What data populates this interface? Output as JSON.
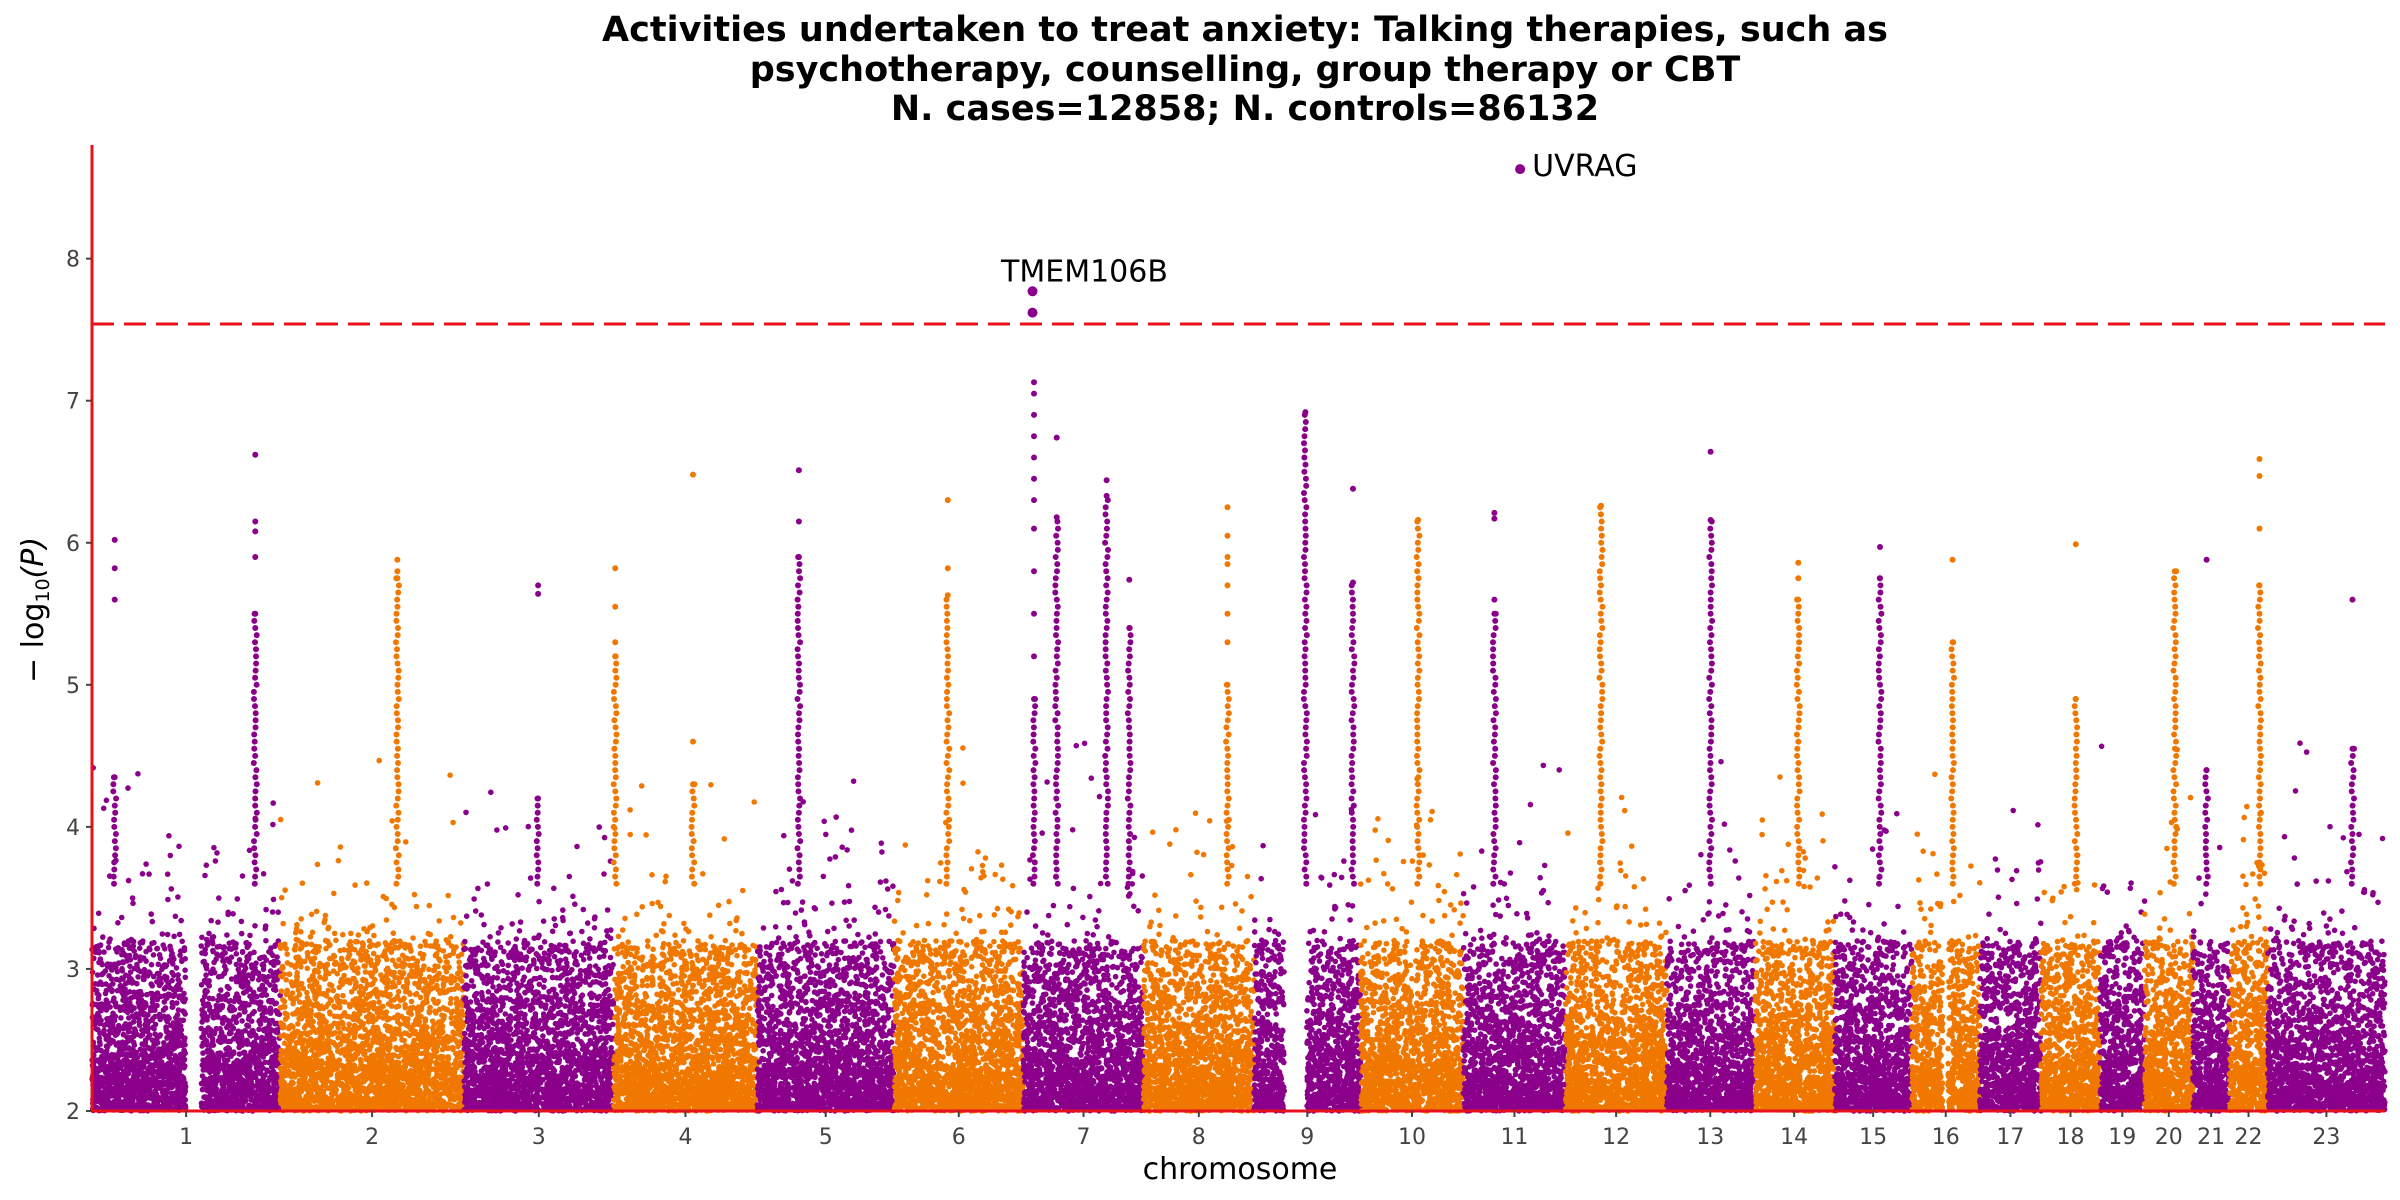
{
  "chart_data": {
    "type": "scatter",
    "title_lines": [
      "Activities undertaken to treat anxiety: Talking therapies, such as",
      "psychotherapy, counselling, group therapy or CBT",
      "N. cases=12858; N. controls=86132"
    ],
    "xlabel": "chromosome",
    "ylabel_prefix": "− log",
    "ylabel_sub": "10",
    "ylabel_suffix": "(P)",
    "ylim": [
      2,
      8.8
    ],
    "yticks": [
      2,
      3,
      4,
      5,
      6,
      7,
      8
    ],
    "threshold": 7.54,
    "colors": {
      "odd": "#8b008b",
      "even": "#f07800",
      "threshold": "#e8101a",
      "axis": "#e8101a",
      "tick": "#444444"
    },
    "chromosomes": [
      {
        "label": "1",
        "start": 0,
        "end": 249,
        "gap_start": 124,
        "gap_end": 144
      },
      {
        "label": "2",
        "start": 249,
        "end": 492
      },
      {
        "label": "3",
        "start": 492,
        "end": 690
      },
      {
        "label": "4",
        "start": 690,
        "end": 880
      },
      {
        "label": "5",
        "start": 880,
        "end": 1061
      },
      {
        "label": "6",
        "start": 1061,
        "end": 1232
      },
      {
        "label": "7",
        "start": 1232,
        "end": 1391
      },
      {
        "label": "8",
        "start": 1391,
        "end": 1537
      },
      {
        "label": "9",
        "start": 1537,
        "end": 1678,
        "gap_start": 1577,
        "gap_end": 1607
      },
      {
        "label": "10",
        "start": 1678,
        "end": 1814
      },
      {
        "label": "11",
        "start": 1814,
        "end": 1949
      },
      {
        "label": "12",
        "start": 1949,
        "end": 2083
      },
      {
        "label": "13",
        "start": 2083,
        "end": 2198,
        "gap_start": 2095,
        "gap_end": 2095
      },
      {
        "label": "14",
        "start": 2198,
        "end": 2305,
        "gap_start": 2198,
        "gap_end": 2200
      },
      {
        "label": "15",
        "start": 2305,
        "end": 2407
      },
      {
        "label": "16",
        "start": 2407,
        "end": 2497,
        "gap_start": 2448,
        "gap_end": 2455
      },
      {
        "label": "17",
        "start": 2497,
        "end": 2578
      },
      {
        "label": "18",
        "start": 2578,
        "end": 2656
      },
      {
        "label": "19",
        "start": 2656,
        "end": 2715
      },
      {
        "label": "20",
        "start": 2715,
        "end": 2779
      },
      {
        "label": "21",
        "start": 2779,
        "end": 2827
      },
      {
        "label": "22",
        "start": 2827,
        "end": 2878
      },
      {
        "label": "23",
        "start": 2878,
        "end": 3033
      }
    ],
    "xlim": [
      0,
      3033
    ],
    "highlights": [
      {
        "gene": "TMEM106B",
        "chr": "7",
        "pos": 1244,
        "p": [
          7.77,
          7.62
        ],
        "label_side": "above"
      },
      {
        "gene": "UVRAG",
        "chr": "11",
        "pos": 1889,
        "p": [
          8.63
        ],
        "label_side": "right"
      }
    ],
    "peaks": [
      {
        "pos": 30,
        "p": [
          5.6,
          4.35,
          6.02,
          5.82
        ]
      },
      {
        "pos": 216,
        "p": [
          6.62,
          6.15,
          6.08,
          5.9,
          5.5
        ]
      },
      {
        "pos": 404,
        "p": [
          5.88,
          5.75,
          5.8
        ]
      },
      {
        "pos": 590,
        "p": [
          5.64,
          5.7,
          4.2
        ]
      },
      {
        "pos": 692,
        "p": [
          5.82,
          5.55,
          5.3,
          5.2
        ]
      },
      {
        "pos": 795,
        "p": [
          6.48,
          4.6,
          4.3
        ]
      },
      {
        "pos": 935,
        "p": [
          6.51,
          6.15,
          5.9
        ]
      },
      {
        "pos": 1132,
        "p": [
          6.3,
          5.82,
          5.63
        ]
      },
      {
        "pos": 1246,
        "p": [
          7.13,
          7.05,
          6.9,
          6.75,
          6.6,
          6.45,
          6.3,
          6.1,
          5.8,
          5.5,
          5.2,
          4.9
        ]
      },
      {
        "pos": 1276,
        "p": [
          6.74,
          6.18
        ]
      },
      {
        "pos": 1342,
        "p": [
          6.44,
          6.33
        ]
      },
      {
        "pos": 1372,
        "p": [
          5.74,
          5.4
        ]
      },
      {
        "pos": 1502,
        "p": [
          6.25,
          6.05,
          5.9,
          5.85,
          5.7,
          5.5,
          5.3,
          5.0
        ]
      },
      {
        "pos": 1605,
        "p": [
          6.92
        ]
      },
      {
        "pos": 1668,
        "p": [
          6.38,
          5.72
        ]
      },
      {
        "pos": 1754,
        "p": [
          6.16,
          6.16
        ]
      },
      {
        "pos": 1855,
        "p": [
          6.21,
          6.17,
          5.6,
          5.5
        ]
      },
      {
        "pos": 1996,
        "p": [
          6.26
        ]
      },
      {
        "pos": 2141,
        "p": [
          6.64,
          6.16
        ]
      },
      {
        "pos": 2257,
        "p": [
          5.86,
          5.75,
          5.6
        ]
      },
      {
        "pos": 2365,
        "p": [
          5.97,
          5.75
        ]
      },
      {
        "pos": 2461,
        "p": [
          5.88,
          5.3
        ]
      },
      {
        "pos": 2624,
        "p": [
          5.99,
          4.9
        ]
      },
      {
        "pos": 2755,
        "p": [
          5.8
        ]
      },
      {
        "pos": 2797,
        "p": [
          5.88,
          4.4
        ]
      },
      {
        "pos": 2867,
        "p": [
          6.59,
          6.47,
          6.1,
          5.7
        ]
      },
      {
        "pos": 2990,
        "p": [
          5.6,
          4.55
        ]
      }
    ]
  }
}
